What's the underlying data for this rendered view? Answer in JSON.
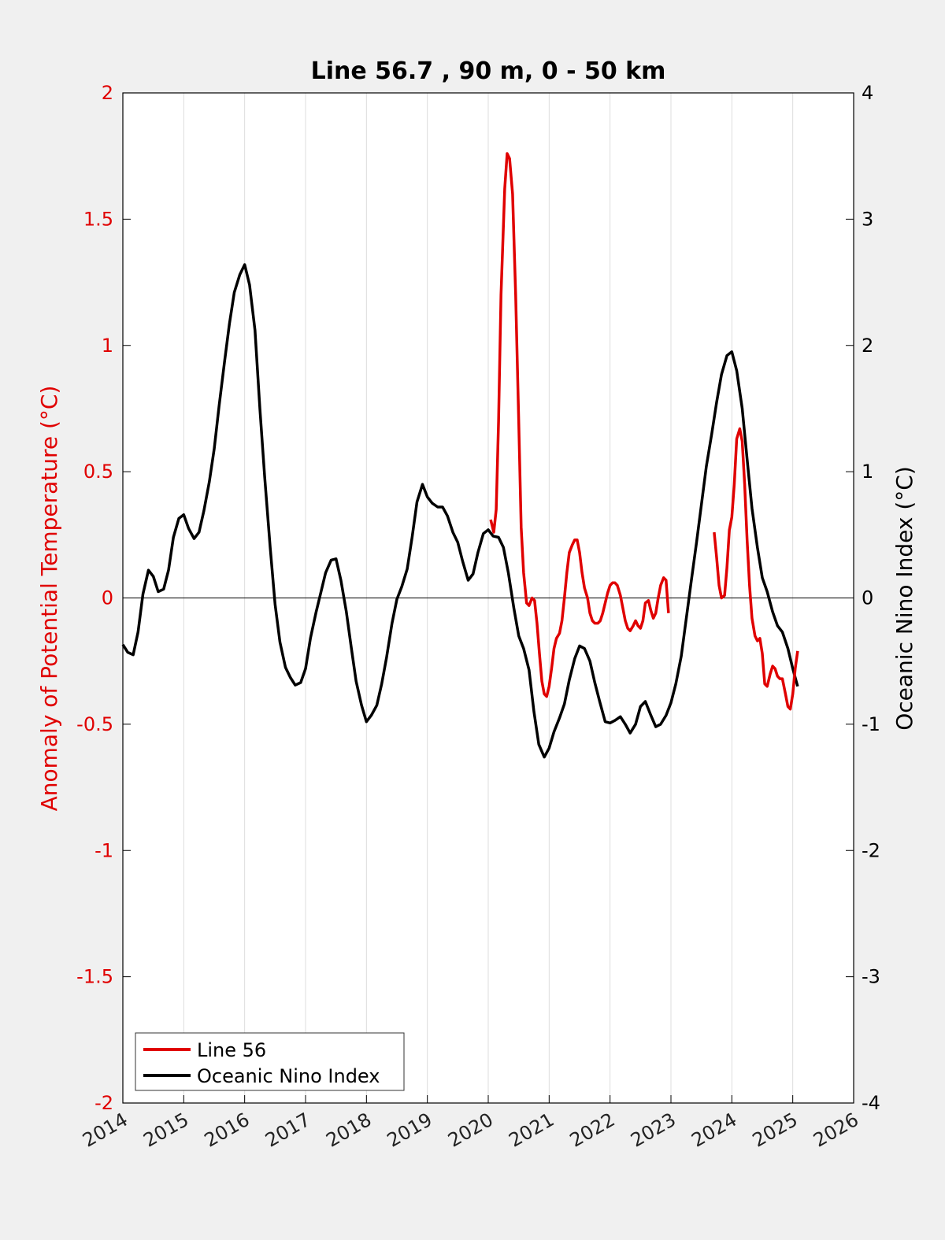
{
  "chart_data": {
    "type": "line",
    "title": "Line 56.7 , 90 m, 0 - 50 km",
    "ylabel_left": "Anomaly of Potential Temperature (°C)",
    "ylabel_right": "Oceanic Nino Index (°C)",
    "xlabel": "",
    "xlim": [
      2014,
      2026
    ],
    "ylim_left": [
      -2,
      2
    ],
    "ylim_right": [
      -4,
      4
    ],
    "x_ticks": [
      "2014",
      "2015",
      "2016",
      "2017",
      "2018",
      "2019",
      "2020",
      "2021",
      "2022",
      "2023",
      "2024",
      "2025",
      "2026"
    ],
    "y_ticks_left": [
      "2",
      "1.5",
      "1",
      "0.5",
      "0",
      "-0.5",
      "-1",
      "-1.5",
      "-2"
    ],
    "y_ticks_right": [
      "4",
      "3",
      "2",
      "1",
      "0",
      "-1",
      "-2",
      "-3",
      "-4"
    ],
    "grid_x": true,
    "legend_position": "bottom-left",
    "colors": {
      "line56": "#e00000",
      "oni": "#000000",
      "axes": "#000000",
      "grid": "#dddddd"
    },
    "series": [
      {
        "name": "Line 56",
        "axis": "left",
        "segments": [
          [
            [
              2020.04,
              0.31
            ],
            [
              2020.09,
              0.26
            ],
            [
              2020.13,
              0.35
            ],
            [
              2020.17,
              0.7
            ],
            [
              2020.21,
              1.2
            ],
            [
              2020.27,
              1.62
            ],
            [
              2020.31,
              1.76
            ],
            [
              2020.35,
              1.74
            ],
            [
              2020.4,
              1.6
            ],
            [
              2020.45,
              1.2
            ],
            [
              2020.5,
              0.7
            ],
            [
              2020.54,
              0.28
            ],
            [
              2020.58,
              0.1
            ],
            [
              2020.63,
              -0.02
            ],
            [
              2020.67,
              -0.03
            ],
            [
              2020.72,
              0.0
            ],
            [
              2020.76,
              -0.01
            ],
            [
              2020.8,
              -0.1
            ],
            [
              2020.84,
              -0.22
            ],
            [
              2020.88,
              -0.33
            ],
            [
              2020.92,
              -0.38
            ],
            [
              2020.96,
              -0.39
            ],
            [
              2021.0,
              -0.35
            ],
            [
              2021.04,
              -0.28
            ],
            [
              2021.08,
              -0.2
            ],
            [
              2021.12,
              -0.16
            ],
            [
              2021.17,
              -0.14
            ],
            [
              2021.21,
              -0.09
            ],
            [
              2021.25,
              0.0
            ],
            [
              2021.29,
              0.1
            ],
            [
              2021.33,
              0.18
            ],
            [
              2021.38,
              0.21
            ],
            [
              2021.42,
              0.23
            ],
            [
              2021.46,
              0.23
            ],
            [
              2021.5,
              0.18
            ],
            [
              2021.54,
              0.1
            ],
            [
              2021.58,
              0.04
            ],
            [
              2021.63,
              0.0
            ],
            [
              2021.67,
              -0.06
            ],
            [
              2021.71,
              -0.09
            ],
            [
              2021.75,
              -0.1
            ],
            [
              2021.8,
              -0.1
            ],
            [
              2021.84,
              -0.09
            ],
            [
              2021.88,
              -0.06
            ],
            [
              2021.92,
              -0.02
            ],
            [
              2021.96,
              0.02
            ],
            [
              2022.0,
              0.05
            ],
            [
              2022.04,
              0.06
            ],
            [
              2022.08,
              0.06
            ],
            [
              2022.12,
              0.05
            ],
            [
              2022.17,
              0.01
            ],
            [
              2022.21,
              -0.04
            ],
            [
              2022.25,
              -0.09
            ],
            [
              2022.29,
              -0.12
            ],
            [
              2022.33,
              -0.13
            ],
            [
              2022.38,
              -0.11
            ],
            [
              2022.42,
              -0.09
            ],
            [
              2022.46,
              -0.11
            ],
            [
              2022.5,
              -0.12
            ],
            [
              2022.54,
              -0.09
            ],
            [
              2022.58,
              -0.02
            ],
            [
              2022.63,
              -0.01
            ],
            [
              2022.67,
              -0.05
            ],
            [
              2022.71,
              -0.08
            ],
            [
              2022.75,
              -0.06
            ],
            [
              2022.79,
              0.0
            ],
            [
              2022.83,
              0.05
            ],
            [
              2022.88,
              0.08
            ],
            [
              2022.92,
              0.07
            ],
            [
              2022.96,
              -0.06
            ]
          ],
          [
            [
              2023.71,
              0.26
            ],
            [
              2023.75,
              0.16
            ],
            [
              2023.79,
              0.05
            ],
            [
              2023.83,
              0.0
            ],
            [
              2023.88,
              0.01
            ],
            [
              2023.92,
              0.12
            ],
            [
              2023.96,
              0.27
            ],
            [
              2024.0,
              0.32
            ],
            [
              2024.04,
              0.45
            ],
            [
              2024.08,
              0.63
            ],
            [
              2024.13,
              0.67
            ],
            [
              2024.17,
              0.62
            ],
            [
              2024.21,
              0.45
            ],
            [
              2024.25,
              0.23
            ],
            [
              2024.29,
              0.05
            ],
            [
              2024.33,
              -0.08
            ],
            [
              2024.38,
              -0.15
            ],
            [
              2024.42,
              -0.17
            ],
            [
              2024.46,
              -0.16
            ],
            [
              2024.5,
              -0.22
            ],
            [
              2024.54,
              -0.34
            ],
            [
              2024.58,
              -0.35
            ],
            [
              2024.63,
              -0.3
            ],
            [
              2024.67,
              -0.27
            ],
            [
              2024.71,
              -0.28
            ],
            [
              2024.75,
              -0.31
            ],
            [
              2024.79,
              -0.32
            ],
            [
              2024.83,
              -0.32
            ],
            [
              2024.88,
              -0.38
            ],
            [
              2024.92,
              -0.43
            ],
            [
              2024.96,
              -0.44
            ],
            [
              2025.0,
              -0.38
            ],
            [
              2025.04,
              -0.28
            ],
            [
              2025.08,
              -0.21
            ]
          ]
        ]
      },
      {
        "name": "Oceanic Nino Index",
        "axis": "right",
        "points": [
          [
            2014.0,
            -0.37
          ],
          [
            2014.08,
            -0.43
          ],
          [
            2014.17,
            -0.45
          ],
          [
            2014.25,
            -0.27
          ],
          [
            2014.33,
            0.03
          ],
          [
            2014.42,
            0.22
          ],
          [
            2014.5,
            0.17
          ],
          [
            2014.58,
            0.05
          ],
          [
            2014.67,
            0.07
          ],
          [
            2014.75,
            0.22
          ],
          [
            2014.83,
            0.48
          ],
          [
            2014.92,
            0.63
          ],
          [
            2015.0,
            0.66
          ],
          [
            2015.08,
            0.55
          ],
          [
            2015.17,
            0.47
          ],
          [
            2015.25,
            0.52
          ],
          [
            2015.33,
            0.69
          ],
          [
            2015.42,
            0.92
          ],
          [
            2015.5,
            1.18
          ],
          [
            2015.58,
            1.52
          ],
          [
            2015.67,
            1.87
          ],
          [
            2015.75,
            2.17
          ],
          [
            2015.83,
            2.42
          ],
          [
            2015.92,
            2.56
          ],
          [
            2016.0,
            2.64
          ],
          [
            2016.08,
            2.48
          ],
          [
            2016.17,
            2.12
          ],
          [
            2016.25,
            1.5
          ],
          [
            2016.33,
            0.95
          ],
          [
            2016.42,
            0.4
          ],
          [
            2016.5,
            -0.05
          ],
          [
            2016.58,
            -0.35
          ],
          [
            2016.67,
            -0.55
          ],
          [
            2016.75,
            -0.63
          ],
          [
            2016.83,
            -0.69
          ],
          [
            2016.92,
            -0.67
          ],
          [
            2017.0,
            -0.56
          ],
          [
            2017.08,
            -0.32
          ],
          [
            2017.17,
            -0.12
          ],
          [
            2017.25,
            0.04
          ],
          [
            2017.33,
            0.2
          ],
          [
            2017.42,
            0.3
          ],
          [
            2017.5,
            0.31
          ],
          [
            2017.58,
            0.14
          ],
          [
            2017.67,
            -0.11
          ],
          [
            2017.75,
            -0.39
          ],
          [
            2017.83,
            -0.66
          ],
          [
            2017.92,
            -0.85
          ],
          [
            2018.0,
            -0.98
          ],
          [
            2018.08,
            -0.93
          ],
          [
            2018.17,
            -0.85
          ],
          [
            2018.25,
            -0.68
          ],
          [
            2018.33,
            -0.47
          ],
          [
            2018.42,
            -0.2
          ],
          [
            2018.5,
            -0.01
          ],
          [
            2018.58,
            0.09
          ],
          [
            2018.67,
            0.23
          ],
          [
            2018.75,
            0.48
          ],
          [
            2018.83,
            0.76
          ],
          [
            2018.92,
            0.9
          ],
          [
            2019.0,
            0.8
          ],
          [
            2019.08,
            0.75
          ],
          [
            2019.17,
            0.72
          ],
          [
            2019.25,
            0.72
          ],
          [
            2019.33,
            0.65
          ],
          [
            2019.42,
            0.52
          ],
          [
            2019.5,
            0.44
          ],
          [
            2019.58,
            0.29
          ],
          [
            2019.67,
            0.14
          ],
          [
            2019.75,
            0.19
          ],
          [
            2019.83,
            0.36
          ],
          [
            2019.92,
            0.51
          ],
          [
            2020.0,
            0.54
          ],
          [
            2020.08,
            0.49
          ],
          [
            2020.17,
            0.48
          ],
          [
            2020.25,
            0.4
          ],
          [
            2020.33,
            0.2
          ],
          [
            2020.42,
            -0.08
          ],
          [
            2020.5,
            -0.3
          ],
          [
            2020.58,
            -0.4
          ],
          [
            2020.67,
            -0.57
          ],
          [
            2020.75,
            -0.9
          ],
          [
            2020.83,
            -1.16
          ],
          [
            2020.92,
            -1.26
          ],
          [
            2021.0,
            -1.19
          ],
          [
            2021.08,
            -1.06
          ],
          [
            2021.17,
            -0.95
          ],
          [
            2021.25,
            -0.84
          ],
          [
            2021.33,
            -0.65
          ],
          [
            2021.42,
            -0.48
          ],
          [
            2021.5,
            -0.38
          ],
          [
            2021.58,
            -0.4
          ],
          [
            2021.67,
            -0.5
          ],
          [
            2021.75,
            -0.67
          ],
          [
            2021.83,
            -0.82
          ],
          [
            2021.92,
            -0.98
          ],
          [
            2022.0,
            -0.99
          ],
          [
            2022.08,
            -0.97
          ],
          [
            2022.17,
            -0.94
          ],
          [
            2022.25,
            -1.0
          ],
          [
            2022.33,
            -1.07
          ],
          [
            2022.42,
            -1.0
          ],
          [
            2022.5,
            -0.86
          ],
          [
            2022.58,
            -0.82
          ],
          [
            2022.67,
            -0.93
          ],
          [
            2022.75,
            -1.02
          ],
          [
            2022.83,
            -1.0
          ],
          [
            2022.92,
            -0.93
          ],
          [
            2023.0,
            -0.83
          ],
          [
            2023.08,
            -0.68
          ],
          [
            2023.17,
            -0.46
          ],
          [
            2023.25,
            -0.17
          ],
          [
            2023.33,
            0.12
          ],
          [
            2023.42,
            0.44
          ],
          [
            2023.5,
            0.74
          ],
          [
            2023.58,
            1.04
          ],
          [
            2023.67,
            1.3
          ],
          [
            2023.75,
            1.55
          ],
          [
            2023.83,
            1.77
          ],
          [
            2023.92,
            1.92
          ],
          [
            2024.0,
            1.95
          ],
          [
            2024.08,
            1.8
          ],
          [
            2024.17,
            1.5
          ],
          [
            2024.25,
            1.1
          ],
          [
            2024.33,
            0.71
          ],
          [
            2024.42,
            0.4
          ],
          [
            2024.5,
            0.16
          ],
          [
            2024.58,
            0.05
          ],
          [
            2024.67,
            -0.11
          ],
          [
            2024.75,
            -0.22
          ],
          [
            2024.83,
            -0.27
          ],
          [
            2024.92,
            -0.4
          ],
          [
            2025.0,
            -0.56
          ],
          [
            2025.08,
            -0.7
          ]
        ]
      }
    ]
  }
}
